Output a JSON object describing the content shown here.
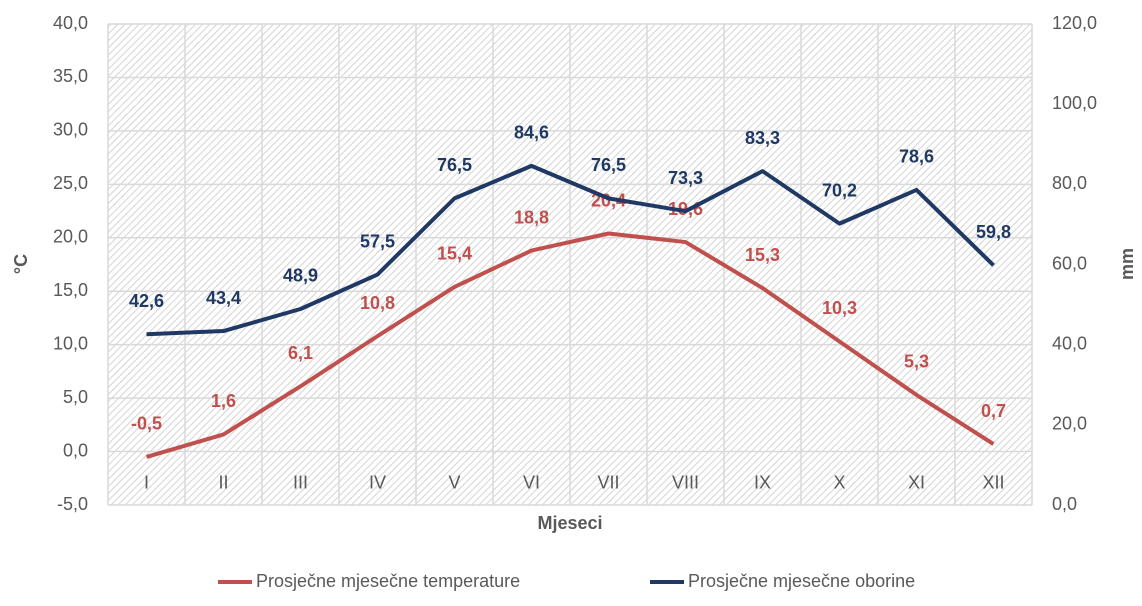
{
  "chart_data": {
    "type": "line",
    "categories": [
      "I",
      "II",
      "III",
      "IV",
      "V",
      "VI",
      "VII",
      "VIII",
      "IX",
      "X",
      "XI",
      "XII"
    ],
    "series": [
      {
        "name": "Prosječne mjesečne temperature",
        "color": "#c0504d",
        "values": [
          -0.5,
          1.6,
          6.1,
          10.8,
          15.4,
          18.8,
          20.4,
          19.6,
          15.3,
          10.3,
          5.3,
          0.7
        ],
        "value_labels": [
          "-0,5",
          "1,6",
          "6,1",
          "10,8",
          "15,4",
          "18,8",
          "20,4",
          "19,6",
          "15,3",
          "10,3",
          "5,3",
          "0,7"
        ]
      },
      {
        "name": "Prosječne mjesečne oborine",
        "color": "#1f3864",
        "axis": "y2",
        "values": [
          42.6,
          43.4,
          48.9,
          57.5,
          76.5,
          84.6,
          76.5,
          73.3,
          83.3,
          70.2,
          78.6,
          59.8
        ],
        "value_labels": [
          "42,6",
          "43,4",
          "48,9",
          "57,5",
          "76,5",
          "84,6",
          "76,5",
          "73,3",
          "83,3",
          "70,2",
          "78,6",
          "59,8"
        ]
      }
    ],
    "x_label": "Mjeseci",
    "y_label": "°C",
    "y2_label": "mm",
    "ylim": [
      -5,
      40
    ],
    "yticks": [
      {
        "value": -5,
        "label": "-5,0"
      },
      {
        "value": 0,
        "label": "0,0"
      },
      {
        "value": 5,
        "label": "5,0"
      },
      {
        "value": 10,
        "label": "10,0"
      },
      {
        "value": 15,
        "label": "15,0"
      },
      {
        "value": 20,
        "label": "20,0"
      },
      {
        "value": 25,
        "label": "25,0"
      },
      {
        "value": 30,
        "label": "30,0"
      },
      {
        "value": 35,
        "label": "35,0"
      },
      {
        "value": 40,
        "label": "40,0"
      }
    ],
    "y2lim": [
      0,
      120
    ],
    "y2ticks": [
      {
        "value": 0,
        "label": "0,0"
      },
      {
        "value": 20,
        "label": "20,0"
      },
      {
        "value": 40,
        "label": "40,0"
      },
      {
        "value": 60,
        "label": "60,0"
      },
      {
        "value": 80,
        "label": "80,0"
      },
      {
        "value": 100,
        "label": "100,0"
      },
      {
        "value": 120,
        "label": "120,0"
      }
    ],
    "grid": true,
    "legend": "bottom"
  }
}
